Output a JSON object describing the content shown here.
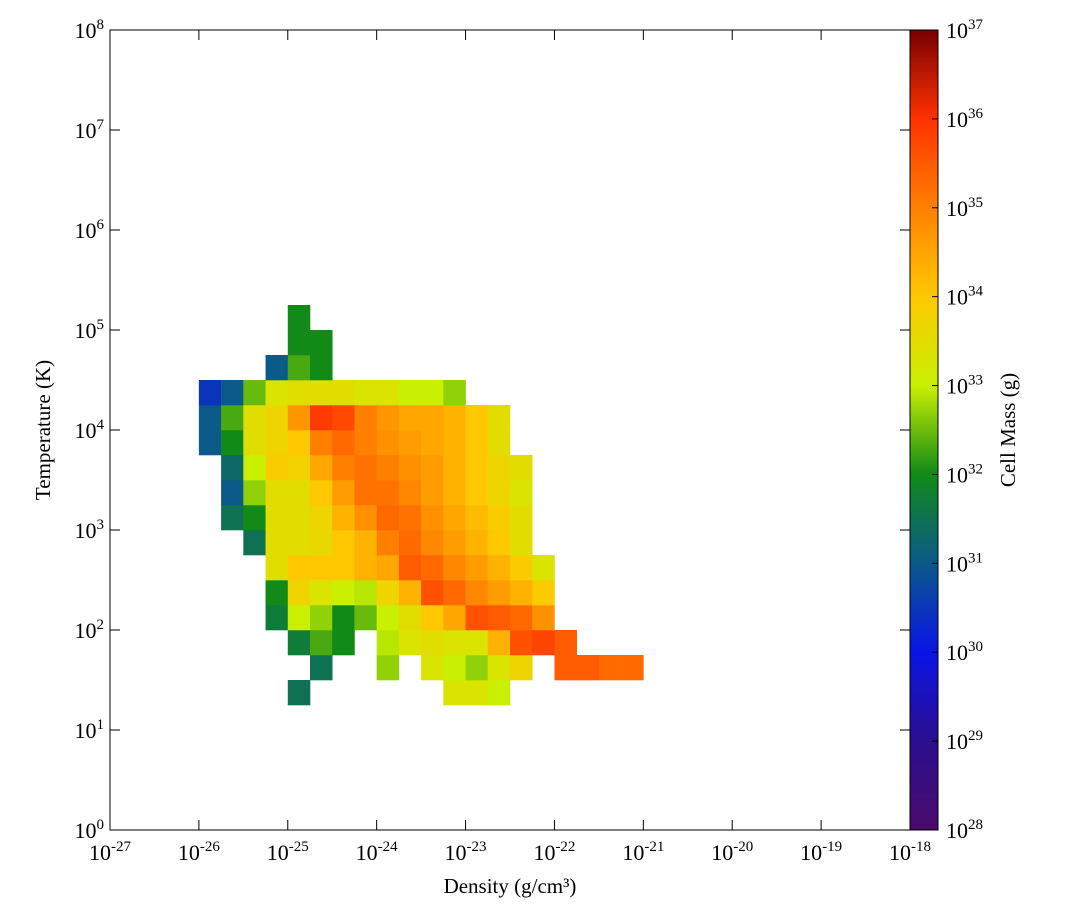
{
  "chart_data": {
    "type": "heatmap",
    "xlabel": "Density (g/cm³)",
    "ylabel": "Temperature (K)",
    "colorbar_label": "Cell Mass (g)",
    "xscale": "log",
    "yscale": "log",
    "colorscale": "log",
    "xlim": [
      1e-27,
      1e-18
    ],
    "ylim": [
      1,
      100000000.0
    ],
    "clim": [
      1e+28,
      1e+37
    ],
    "xticks": [
      {
        "value": 1e-27,
        "label": "10^-27"
      },
      {
        "value": 1e-26,
        "label": "10^-26"
      },
      {
        "value": 1e-25,
        "label": "10^-25"
      },
      {
        "value": 1e-24,
        "label": "10^-24"
      },
      {
        "value": 1e-23,
        "label": "10^-23"
      },
      {
        "value": 1e-22,
        "label": "10^-22"
      },
      {
        "value": 1e-21,
        "label": "10^-21"
      },
      {
        "value": 1e-20,
        "label": "10^-20"
      },
      {
        "value": 1e-19,
        "label": "10^-19"
      },
      {
        "value": 1e-18,
        "label": "10^-18"
      }
    ],
    "yticks": [
      {
        "value": 1,
        "label": "10^0"
      },
      {
        "value": 10,
        "label": "10^1"
      },
      {
        "value": 100,
        "label": "10^2"
      },
      {
        "value": 1000,
        "label": "10^3"
      },
      {
        "value": 10000,
        "label": "10^4"
      },
      {
        "value": 100000,
        "label": "10^5"
      },
      {
        "value": 1000000,
        "label": "10^6"
      },
      {
        "value": 10000000,
        "label": "10^7"
      },
      {
        "value": 100000000,
        "label": "10^8"
      }
    ],
    "cticks": [
      {
        "value": 1e+28,
        "label": "10^28"
      },
      {
        "value": 1e+29,
        "label": "10^29"
      },
      {
        "value": 1e+30,
        "label": "10^30"
      },
      {
        "value": 1e+31,
        "label": "10^31"
      },
      {
        "value": 1e+32,
        "label": "10^32"
      },
      {
        "value": 1e+33,
        "label": "10^33"
      },
      {
        "value": 1e+34,
        "label": "10^34"
      },
      {
        "value": 1e+35,
        "label": "10^35"
      },
      {
        "value": 1e+36,
        "label": "10^36"
      },
      {
        "value": 1e+37,
        "label": "10^37"
      }
    ],
    "colormap": [
      "#4b0a6b",
      "#2c0e8f",
      "#0a14e6",
      "#0b5a8a",
      "#118a18",
      "#c8f000",
      "#ffc800",
      "#ff8000",
      "#ff3200",
      "#7a0000"
    ],
    "x_edges": [
      1e-26,
      1.778e-26,
      3.162e-26,
      5.623e-26,
      1e-25,
      1.778e-25,
      3.162e-25,
      5.623e-25,
      1e-24,
      1.778e-24,
      3.162e-24,
      5.623e-24,
      1e-23,
      1.778e-23,
      3.162e-23,
      5.623e-23,
      1e-22,
      1.778e-22,
      3.162e-22,
      5.623e-22,
      1e-21
    ],
    "y_edges": [
      17.78,
      31.62,
      56.23,
      100,
      177.8,
      316.2,
      562.3,
      1000,
      1778,
      3162,
      5623,
      10000,
      17783,
      31623,
      56234,
      100000,
      177828
    ],
    "z": [
      [
        null,
        null,
        null,
        null,
        3e+31,
        null,
        null,
        null,
        null,
        null,
        null,
        2e+33,
        2e+33,
        1e+33,
        null,
        null,
        null,
        null,
        null,
        null
      ],
      [
        null,
        null,
        null,
        null,
        null,
        3e+31,
        null,
        null,
        5e+32,
        null,
        2e+33,
        1e+33,
        5e+32,
        2e+33,
        5e+33,
        null,
        3e+35,
        3e+35,
        2e+35,
        2e+35
      ],
      [
        null,
        null,
        null,
        null,
        5e+31,
        2e+32,
        1e+32,
        null,
        8e+32,
        2e+33,
        3e+33,
        2e+33,
        2e+33,
        2e+34,
        4e+35,
        6e+35,
        3e+35,
        null,
        null,
        null
      ],
      [
        null,
        null,
        null,
        5e+31,
        1e+33,
        5e+32,
        1e+32,
        3e+32,
        1e+33,
        3e+33,
        1e+34,
        3e+34,
        4e+35,
        3e+35,
        2e+35,
        6e+34,
        null,
        null,
        null,
        null
      ],
      [
        null,
        null,
        null,
        1e+32,
        5e+33,
        2e+33,
        1e+33,
        8e+32,
        5e+33,
        2e+34,
        4e+35,
        2e+35,
        8e+34,
        4e+34,
        2e+34,
        8e+33,
        null,
        null,
        null,
        null
      ],
      [
        null,
        null,
        null,
        3e+33,
        1e+34,
        1e+34,
        1e+34,
        2e+34,
        3e+34,
        3e+35,
        2e+35,
        8e+34,
        4e+34,
        2e+34,
        8e+33,
        2e+33,
        null,
        null,
        null,
        null
      ],
      [
        null,
        null,
        3e+31,
        3e+33,
        3e+33,
        4e+33,
        1e+34,
        2e+34,
        1e+35,
        2e+35,
        8e+34,
        4e+34,
        2e+34,
        1e+34,
        3e+33,
        null,
        null,
        null,
        null,
        null
      ],
      [
        null,
        3e+31,
        1e+32,
        3e+33,
        3e+33,
        5e+33,
        2e+34,
        6e+34,
        2e+35,
        1.5e+35,
        6e+34,
        3e+34,
        1.5e+34,
        8e+33,
        3e+33,
        null,
        null,
        null,
        null,
        null
      ],
      [
        null,
        1e+31,
        5e+32,
        3e+33,
        3e+33,
        1e+34,
        4e+34,
        1.5e+35,
        1.5e+35,
        8e+34,
        4e+34,
        2e+34,
        1e+34,
        5e+33,
        2e+33,
        null,
        null,
        null,
        null,
        null
      ],
      [
        null,
        2e+31,
        1e+33,
        8e+33,
        6e+33,
        3e+34,
        1e+35,
        1.5e+35,
        1e+35,
        6e+34,
        4e+34,
        2e+34,
        1e+34,
        5e+33,
        3e+33,
        null,
        null,
        null,
        null,
        null
      ],
      [
        1e+31,
        1e+32,
        3e+33,
        5e+33,
        1e+34,
        1e+35,
        2e+35,
        1e+35,
        6e+34,
        4e+34,
        3e+34,
        2e+34,
        1e+34,
        3e+33,
        null,
        null,
        null,
        null,
        null,
        null
      ],
      [
        1e+31,
        2e+32,
        3e+33,
        5e+33,
        5e+34,
        8e+35,
        5e+35,
        1e+35,
        5e+34,
        3e+34,
        3e+34,
        2e+34,
        1e+34,
        3e+33,
        null,
        null,
        null,
        null,
        null,
        null
      ],
      [
        3e+30,
        1e+31,
        3e+32,
        2e+33,
        3e+33,
        3e+33,
        3e+33,
        2e+33,
        2e+33,
        1e+33,
        1e+33,
        5e+32,
        null,
        null,
        null,
        null,
        null,
        null,
        null,
        null
      ],
      [
        null,
        null,
        null,
        1e+31,
        2e+32,
        1e+32,
        null,
        null,
        null,
        null,
        null,
        null,
        null,
        null,
        null,
        null,
        null,
        null,
        null,
        null
      ],
      [
        null,
        null,
        null,
        null,
        1e+32,
        1e+32,
        null,
        null,
        null,
        null,
        null,
        null,
        null,
        null,
        null,
        null,
        null,
        null,
        null,
        null
      ],
      [
        null,
        null,
        null,
        null,
        1e+32,
        null,
        null,
        null,
        null,
        null,
        null,
        null,
        null,
        null,
        null,
        null,
        null,
        null,
        null,
        null
      ]
    ]
  }
}
